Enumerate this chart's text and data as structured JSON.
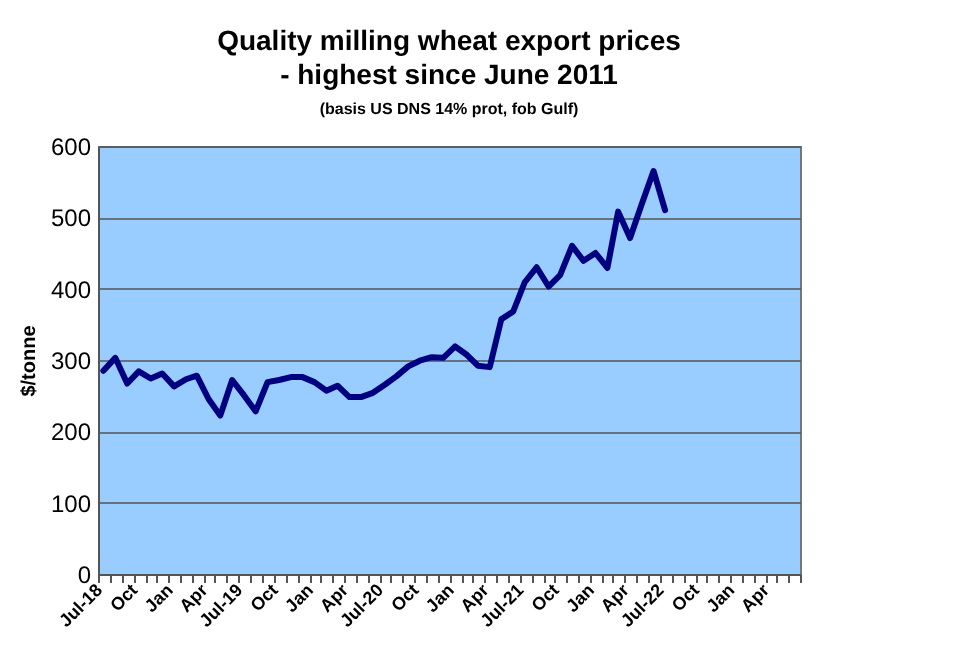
{
  "chart_data": {
    "type": "line",
    "title": "Quality milling wheat export prices\n- highest since June 2011",
    "subtitle": "(basis US DNS 14% prot, fob Gulf)",
    "ylabel": "$/tonne",
    "x": [
      "2018-07-15",
      "2018-08-15",
      "2018-09-15",
      "2018-10-15",
      "2018-11-15",
      "2018-12-15",
      "2019-01-15",
      "2019-02-15",
      "2019-03-15",
      "2019-04-15",
      "2019-05-15",
      "2019-06-15",
      "2019-07-15",
      "2019-08-15",
      "2019-09-15",
      "2019-10-15",
      "2019-11-15",
      "2019-12-15",
      "2020-01-15",
      "2020-02-15",
      "2020-03-15",
      "2020-04-15",
      "2020-05-15",
      "2020-06-15",
      "2020-07-15",
      "2020-08-15",
      "2020-09-15",
      "2020-10-15",
      "2020-11-15",
      "2020-12-15",
      "2021-01-15",
      "2021-02-15",
      "2021-03-15",
      "2021-04-15",
      "2021-05-15",
      "2021-06-15",
      "2021-07-15",
      "2021-08-15",
      "2021-09-15",
      "2021-10-15",
      "2021-11-15",
      "2021-12-15",
      "2022-01-15",
      "2022-02-15",
      "2022-03-15",
      "2022-04-15",
      "2022-05-15",
      "2022-06-15",
      "2022-07-15"
    ],
    "series": [
      {
        "color": "#000080",
        "values": [
          285,
          303,
          267,
          284,
          274,
          281,
          263,
          273,
          278,
          245,
          222,
          272,
          251,
          228,
          269,
          272,
          276,
          276,
          269,
          257,
          264,
          248,
          248,
          254,
          265,
          277,
          291,
          299,
          304,
          303,
          319,
          307,
          292,
          290,
          357,
          368,
          409,
          430,
          403,
          419,
          460,
          439,
          450,
          429,
          508,
          471,
          518,
          565,
          510
        ]
      }
    ],
    "xlim": [
      "2018-07-01",
      "2023-07-01"
    ],
    "xticks": [
      {
        "value": "2018-07-01",
        "label": "Jul-18"
      },
      {
        "value": "2018-08-01",
        "label": null
      },
      {
        "value": "2018-09-01",
        "label": null
      },
      {
        "value": "2018-10-01",
        "label": "Oct"
      },
      {
        "value": "2018-11-01",
        "label": null
      },
      {
        "value": "2018-12-01",
        "label": null
      },
      {
        "value": "2019-01-01",
        "label": "Jan"
      },
      {
        "value": "2019-02-01",
        "label": null
      },
      {
        "value": "2019-03-01",
        "label": null
      },
      {
        "value": "2019-04-01",
        "label": "Apr"
      },
      {
        "value": "2019-05-01",
        "label": null
      },
      {
        "value": "2019-06-01",
        "label": null
      },
      {
        "value": "2019-07-01",
        "label": "Jul-19"
      },
      {
        "value": "2019-08-01",
        "label": null
      },
      {
        "value": "2019-09-01",
        "label": null
      },
      {
        "value": "2019-10-01",
        "label": "Oct"
      },
      {
        "value": "2019-11-01",
        "label": null
      },
      {
        "value": "2019-12-01",
        "label": null
      },
      {
        "value": "2020-01-01",
        "label": "Jan"
      },
      {
        "value": "2020-02-01",
        "label": null
      },
      {
        "value": "2020-03-01",
        "label": null
      },
      {
        "value": "2020-04-01",
        "label": "Apr"
      },
      {
        "value": "2020-05-01",
        "label": null
      },
      {
        "value": "2020-06-01",
        "label": null
      },
      {
        "value": "2020-07-01",
        "label": "Jul-20"
      },
      {
        "value": "2020-08-01",
        "label": null
      },
      {
        "value": "2020-09-01",
        "label": null
      },
      {
        "value": "2020-10-01",
        "label": "Oct"
      },
      {
        "value": "2020-11-01",
        "label": null
      },
      {
        "value": "2020-12-01",
        "label": null
      },
      {
        "value": "2021-01-01",
        "label": "Jan"
      },
      {
        "value": "2021-02-01",
        "label": null
      },
      {
        "value": "2021-03-01",
        "label": null
      },
      {
        "value": "2021-04-01",
        "label": "Apr"
      },
      {
        "value": "2021-05-01",
        "label": null
      },
      {
        "value": "2021-06-01",
        "label": null
      },
      {
        "value": "2021-07-01",
        "label": "Jul-21"
      },
      {
        "value": "2021-08-01",
        "label": null
      },
      {
        "value": "2021-09-01",
        "label": null
      },
      {
        "value": "2021-10-01",
        "label": "Oct"
      },
      {
        "value": "2021-11-01",
        "label": null
      },
      {
        "value": "2021-12-01",
        "label": null
      },
      {
        "value": "2022-01-01",
        "label": "Jan"
      },
      {
        "value": "2022-02-01",
        "label": null
      },
      {
        "value": "2022-03-01",
        "label": null
      },
      {
        "value": "2022-04-01",
        "label": "Apr"
      },
      {
        "value": "2022-05-01",
        "label": null
      },
      {
        "value": "2022-06-01",
        "label": null
      },
      {
        "value": "2022-07-01",
        "label": "Jul-22"
      },
      {
        "value": "2022-08-01",
        "label": null
      },
      {
        "value": "2022-09-01",
        "label": null
      },
      {
        "value": "2022-10-01",
        "label": "Oct"
      },
      {
        "value": "2022-11-01",
        "label": null
      },
      {
        "value": "2022-12-01",
        "label": null
      },
      {
        "value": "2023-01-01",
        "label": "Jan"
      },
      {
        "value": "2023-02-01",
        "label": null
      },
      {
        "value": "2023-03-01",
        "label": null
      },
      {
        "value": "2023-04-01",
        "label": "Apr"
      },
      {
        "value": "2023-05-01",
        "label": null
      },
      {
        "value": "2023-06-01",
        "label": null
      },
      {
        "value": "2023-07-01",
        "label": null
      }
    ],
    "ylim": [
      0,
      600
    ],
    "yticks": [
      0,
      100,
      200,
      300,
      400,
      500,
      600
    ],
    "grid": "y",
    "legend": false,
    "marker": "none",
    "line_style": "solid"
  }
}
